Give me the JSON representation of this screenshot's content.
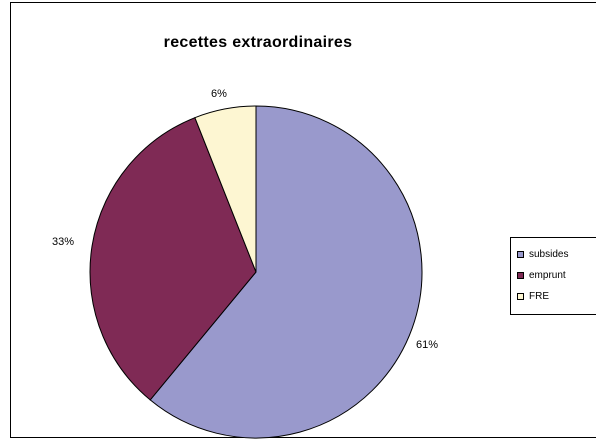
{
  "chart_data": {
    "type": "pie",
    "title": "recettes extraordinaires",
    "categories": [
      "subsides",
      "emprunt",
      "FRE"
    ],
    "values": [
      61,
      33,
      6
    ],
    "value_labels": [
      "61%",
      "33%",
      "6%"
    ],
    "colors": [
      "#9999cc",
      "#7f2a55",
      "#fdf6d2"
    ],
    "legend_labels": [
      "subsides",
      "emprunt",
      "FRE"
    ],
    "legend_position": "right"
  }
}
